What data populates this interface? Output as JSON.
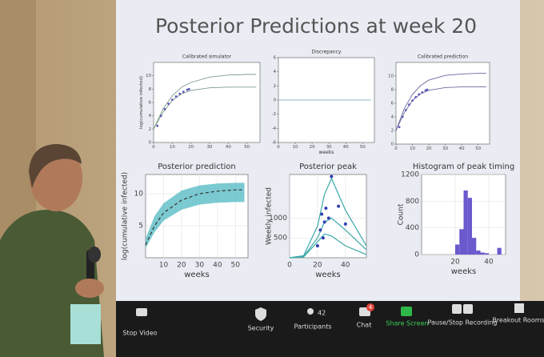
{
  "slide": {
    "title": "Posterior Predictions at week 20",
    "panels": [
      {
        "title": "Calibrated simulator",
        "ylabel": "log(cumulative infected)",
        "xlim": [
          0,
          57
        ],
        "ylim": [
          0,
          12
        ],
        "xticks": [
          0,
          10,
          20,
          30,
          40,
          50
        ],
        "yticks": [
          0,
          2,
          4,
          6,
          8,
          10
        ],
        "series": [
          {
            "type": "line",
            "color": "#7f9c8c",
            "x": [
              0,
              5,
              10,
              15,
              20,
              30,
              40,
              50,
              55
            ],
            "values": [
              2,
              5,
              7,
              8.3,
              9,
              9.8,
              10.1,
              10.2,
              10.2
            ]
          },
          {
            "type": "line",
            "color": "#7f9c8c",
            "x": [
              0,
              5,
              10,
              15,
              20,
              30,
              40,
              50,
              55
            ],
            "values": [
              2,
              4.5,
              6.3,
              7.3,
              7.8,
              8.2,
              8.3,
              8.3,
              8.3
            ]
          },
          {
            "type": "points",
            "color": "#5a5ab8",
            "x": [
              2,
              4,
              6,
              8,
              10,
              12,
              14,
              16,
              18,
              19
            ],
            "values": [
              2.5,
              4,
              5,
              5.8,
              6.4,
              6.9,
              7.3,
              7.6,
              7.9,
              8
            ]
          }
        ]
      },
      {
        "title": "Discrepancy",
        "xlabel": "weeks",
        "xlim": [
          0,
          57
        ],
        "ylim": [
          -6,
          6
        ],
        "xticks": [
          0,
          10,
          20,
          30,
          40,
          50
        ],
        "yticks": [
          -6,
          -4,
          -2,
          0,
          2,
          4,
          6
        ],
        "series": [
          {
            "type": "line",
            "color": "#8fb4c4",
            "x": [
              0,
              55
            ],
            "values": [
              0,
              0
            ]
          }
        ]
      },
      {
        "title": "Calibrated prediction",
        "xlim": [
          0,
          57
        ],
        "ylim": [
          0,
          12
        ],
        "xticks": [
          0,
          10,
          20,
          30,
          40,
          50
        ],
        "yticks": [
          0,
          2,
          4,
          6,
          8,
          10
        ],
        "series": [
          {
            "type": "line",
            "color": "#6a6aa0",
            "x": [
              0,
              5,
              10,
              15,
              20,
              30,
              40,
              50,
              55
            ],
            "values": [
              2,
              5.2,
              7.3,
              8.6,
              9.4,
              10.1,
              10.3,
              10.4,
              10.4
            ]
          },
          {
            "type": "line",
            "color": "#6a6aa0",
            "x": [
              0,
              5,
              10,
              15,
              20,
              30,
              40,
              50,
              55
            ],
            "values": [
              2,
              4.6,
              6.4,
              7.4,
              7.9,
              8.3,
              8.4,
              8.4,
              8.4
            ]
          },
          {
            "type": "points",
            "color": "#5a5ab8",
            "x": [
              2,
              4,
              6,
              8,
              10,
              12,
              14,
              16,
              18,
              19
            ],
            "values": [
              2.5,
              4,
              5,
              5.8,
              6.4,
              6.9,
              7.3,
              7.6,
              7.9,
              8
            ]
          }
        ]
      },
      {
        "title": "Posterior prediction",
        "xlabel": "weeks",
        "ylabel": "log(cumulative infected)",
        "xlim": [
          0,
          57
        ],
        "ylim": [
          0,
          13
        ],
        "xticks": [
          10,
          20,
          30,
          40,
          50
        ],
        "yticks": [
          5,
          10
        ],
        "grid": true,
        "series": [
          {
            "type": "band",
            "color": "#4fb8c2",
            "x": [
              0,
              5,
              10,
              20,
              30,
              40,
              50,
              55
            ],
            "lower": [
              1.5,
              4,
              5.8,
              7.5,
              8.3,
              8.6,
              8.7,
              8.7
            ],
            "upper": [
              3,
              6.5,
              8.5,
              10.5,
              11.3,
              11.6,
              11.7,
              11.7
            ]
          },
          {
            "type": "line",
            "dash": true,
            "color": "#333",
            "x": [
              0,
              5,
              10,
              20,
              30,
              40,
              50,
              55
            ],
            "values": [
              2,
              5,
              7,
              9,
              10,
              10.4,
              10.6,
              10.6
            ]
          }
        ]
      },
      {
        "title": "Posterior peak",
        "xlabel": "weeks",
        "ylabel": "Weekly infected",
        "xlim": [
          0,
          55
        ],
        "ylim": [
          0,
          2100
        ],
        "xticks": [
          0,
          20,
          40
        ],
        "yticks": [
          500,
          1000
        ],
        "grid": true,
        "series": [
          {
            "type": "line",
            "color": "#3aa8a8",
            "x": [
              0,
              10,
              20,
              25,
              30,
              40,
              55
            ],
            "values": [
              0,
              50,
              800,
              1600,
              2000,
              1200,
              300
            ]
          },
          {
            "type": "line",
            "color": "#3aa8a8",
            "x": [
              0,
              10,
              20,
              25,
              30,
              40,
              55
            ],
            "values": [
              0,
              30,
              500,
              900,
              1000,
              700,
              200
            ]
          },
          {
            "type": "line",
            "color": "#3aa8a8",
            "x": [
              0,
              10,
              20,
              25,
              30,
              40,
              55
            ],
            "values": [
              0,
              20,
              400,
              600,
              550,
              300,
              80
            ]
          },
          {
            "type": "points",
            "color": "#3040b0",
            "x": [
              20,
              22,
              23,
              24,
              25,
              26,
              28,
              30,
              35,
              40
            ],
            "values": [
              300,
              700,
              1100,
              500,
              900,
              1250,
              1000,
              2050,
              1300,
              850
            ]
          }
        ]
      },
      {
        "title": "Histogram of peak timing",
        "xlabel": "weeks",
        "ylabel": "Count",
        "xlim": [
          0,
          50
        ],
        "ylim": [
          0,
          1200
        ],
        "xticks": [
          20,
          40
        ],
        "yticks": [
          0,
          400,
          800,
          1200
        ],
        "grid": true,
        "series": [
          {
            "type": "bars",
            "color": "#6a5acd",
            "bins": [
              20,
              22.5,
              25,
              27.5,
              30,
              32.5,
              35,
              37.5,
              40,
              42.5,
              45,
              47.5
            ],
            "values": [
              150,
              380,
              960,
              850,
              250,
              60,
              30,
              20,
              0,
              0,
              100
            ]
          }
        ]
      }
    ]
  },
  "toolbar": {
    "stop_video": "Stop Video",
    "security": "Security",
    "participants_count": "42",
    "participants": "Participants",
    "chat_badge": "4",
    "chat": "Chat",
    "share_screen": "Share Screen",
    "recording": "Pause/Stop Recording",
    "breakout": "Breakout Rooms"
  }
}
